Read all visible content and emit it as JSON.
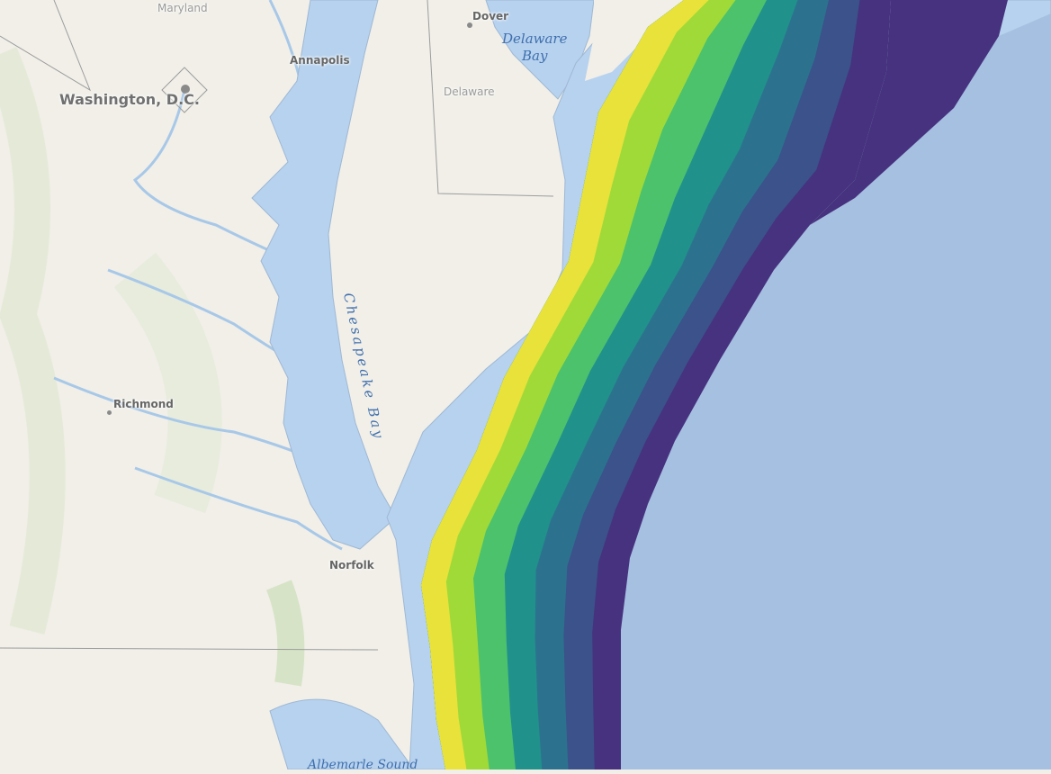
{
  "labels": {
    "maryland": "Maryland",
    "dover": "Dover",
    "delaware_bay_line1": "Delaware",
    "delaware_bay_line2": "Bay",
    "annapolis": "Annapolis",
    "washington": "Washington, D.C.",
    "delaware": "Delaware",
    "chesapeake_bay": "Chesapeake Bay",
    "richmond": "Richmond",
    "norfolk": "Norfolk",
    "albemarle_sound": "Albemarle Sound"
  },
  "colors": {
    "land": "#f1efe8",
    "water": "#b7d2ee",
    "deep_ocean": "#a6c0e2",
    "raster_colormap": [
      "#e8e23a",
      "#a0da39",
      "#4cc26c",
      "#21918c",
      "#2c728e",
      "#3b528b",
      "#46327e"
    ]
  },
  "raster_layer": {
    "colormap": "viridis"
  }
}
